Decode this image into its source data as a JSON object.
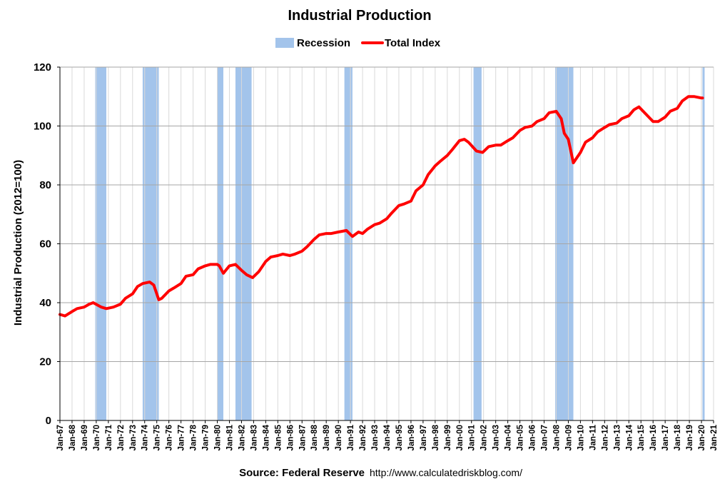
{
  "chart_data": {
    "type": "line",
    "title": "Industrial Production",
    "ylabel": "Industrial Production (2012=100)",
    "xlabel": "",
    "ylim": [
      0,
      120
    ],
    "yticks": [
      0,
      20,
      40,
      60,
      80,
      100,
      120
    ],
    "x_tick_labels": [
      "Jan-67",
      "Jan-68",
      "Jan-69",
      "Jan-70",
      "Jan-71",
      "Jan-72",
      "Jan-73",
      "Jan-74",
      "Jan-75",
      "Jan-76",
      "Jan-77",
      "Jan-78",
      "Jan-79",
      "Jan-80",
      "Jan-81",
      "Jan-82",
      "Jan-83",
      "Jan-84",
      "Jan-85",
      "Jan-86",
      "Jan-87",
      "Jan-88",
      "Jan-89",
      "Jan-90",
      "Jan-91",
      "Jan-92",
      "Jan-93",
      "Jan-94",
      "Jan-95",
      "Jan-96",
      "Jan-97",
      "Jan-98",
      "Jan-99",
      "Jan-00",
      "Jan-01",
      "Jan-02",
      "Jan-03",
      "Jan-04",
      "Jan-05",
      "Jan-06",
      "Jan-07",
      "Jan-08",
      "Jan-09",
      "Jan-10",
      "Jan-11",
      "Jan-12",
      "Jan-13",
      "Jan-14",
      "Jan-15",
      "Jan-16",
      "Jan-17",
      "Jan-18",
      "Jan-19",
      "Jan-20",
      "Jan-21"
    ],
    "grid": true,
    "legend_position": "top",
    "legend": [
      "Recession",
      "Total Index"
    ],
    "colors": {
      "recession": "#a3c4eb",
      "line": "#ff0000",
      "grid": "#d9d9d9"
    },
    "series": [
      {
        "name": "Total Index",
        "x": [
          "1967-01",
          "1967-06",
          "1968-01",
          "1968-06",
          "1969-01",
          "1969-06",
          "1969-10",
          "1970-06",
          "1970-11",
          "1971-06",
          "1972-01",
          "1972-06",
          "1973-01",
          "1973-06",
          "1973-11",
          "1974-06",
          "1974-10",
          "1975-03",
          "1975-06",
          "1976-01",
          "1976-06",
          "1977-01",
          "1977-06",
          "1978-01",
          "1978-06",
          "1979-01",
          "1979-06",
          "1980-01",
          "1980-03",
          "1980-07",
          "1981-01",
          "1981-07",
          "1982-01",
          "1982-06",
          "1982-12",
          "1983-06",
          "1984-01",
          "1984-06",
          "1985-01",
          "1985-06",
          "1986-01",
          "1986-06",
          "1987-01",
          "1987-06",
          "1988-01",
          "1988-06",
          "1989-01",
          "1989-06",
          "1990-01",
          "1990-09",
          "1991-03",
          "1991-09",
          "1992-01",
          "1992-06",
          "1993-01",
          "1993-06",
          "1994-01",
          "1994-06",
          "1995-01",
          "1995-06",
          "1996-01",
          "1996-06",
          "1997-01",
          "1997-06",
          "1998-01",
          "1998-06",
          "1999-01",
          "1999-06",
          "2000-01",
          "2000-06",
          "2000-10",
          "2001-06",
          "2001-12",
          "2002-06",
          "2003-01",
          "2003-06",
          "2004-01",
          "2004-06",
          "2005-01",
          "2005-06",
          "2006-01",
          "2006-06",
          "2007-01",
          "2007-06",
          "2008-01",
          "2008-06",
          "2008-09",
          "2009-01",
          "2009-06",
          "2010-01",
          "2010-06",
          "2011-01",
          "2011-06",
          "2012-01",
          "2012-06",
          "2013-01",
          "2013-06",
          "2014-01",
          "2014-06",
          "2014-11",
          "2015-06",
          "2016-01",
          "2016-06",
          "2017-01",
          "2017-06",
          "2018-01",
          "2018-06",
          "2018-12",
          "2019-06",
          "2020-01",
          "2020-02"
        ],
        "values": [
          36,
          35.5,
          37,
          38,
          38.5,
          39.5,
          40,
          38.5,
          38,
          38.5,
          39.5,
          41.5,
          43,
          45.5,
          46.5,
          47,
          46,
          41,
          41.5,
          44,
          45,
          46.5,
          49,
          49.5,
          51.5,
          52.5,
          53,
          53,
          52.5,
          50,
          52.5,
          53,
          51,
          49.5,
          48.5,
          50.5,
          54,
          55.5,
          56,
          56.5,
          56,
          56.5,
          57.5,
          59,
          61.5,
          63,
          63.5,
          63.5,
          64,
          64.5,
          62.5,
          64,
          63.5,
          65,
          66.5,
          67,
          68.5,
          70.5,
          73,
          73.5,
          74.5,
          78,
          80,
          83.5,
          86.5,
          88,
          90,
          92,
          95,
          95.5,
          94.5,
          91.5,
          91,
          93,
          93.5,
          93.5,
          95,
          96,
          98.5,
          99.5,
          100,
          101.5,
          102.5,
          104.5,
          105,
          102.5,
          97.5,
          95.5,
          87.5,
          91,
          94.5,
          96,
          98,
          99.5,
          100.5,
          101,
          102.5,
          103.5,
          105.5,
          106.5,
          104,
          101.5,
          101.5,
          103,
          105,
          106,
          108.5,
          110,
          110,
          109.5,
          109.5
        ]
      }
    ],
    "recessions": [
      {
        "start": "1969-12",
        "end": "1970-11"
      },
      {
        "start": "1973-11",
        "end": "1975-03"
      },
      {
        "start": "1980-01",
        "end": "1980-07"
      },
      {
        "start": "1981-07",
        "end": "1982-11"
      },
      {
        "start": "1990-07",
        "end": "1991-03"
      },
      {
        "start": "2001-03",
        "end": "2001-11"
      },
      {
        "start": "2007-12",
        "end": "2009-06"
      },
      {
        "start": "2020-02",
        "end": "2020-04"
      }
    ],
    "source_label": "Source: Federal Reserve",
    "source_url": "http://www.calculatedriskblog.com/"
  }
}
